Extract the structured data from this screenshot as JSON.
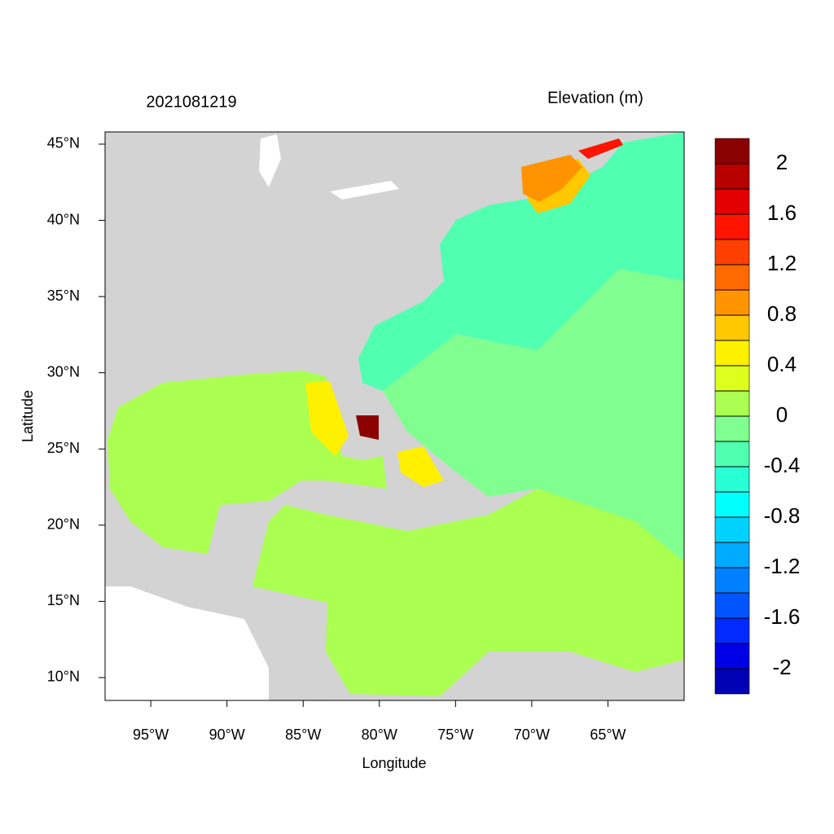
{
  "chart_data": {
    "type": "map",
    "title": "2021081219",
    "colorbar_title": "Elevation (m)",
    "x_label": "Longitude",
    "y_label": "Latitude",
    "xlim": [
      -98,
      -60
    ],
    "ylim": [
      8.5,
      45.8
    ],
    "xticks": [
      {
        "value": -95,
        "label": "95°W"
      },
      {
        "value": -90,
        "label": "90°W"
      },
      {
        "value": -85,
        "label": "85°W"
      },
      {
        "value": -80,
        "label": "80°W"
      },
      {
        "value": -75,
        "label": "75°W"
      },
      {
        "value": -70,
        "label": "70°W"
      },
      {
        "value": -65,
        "label": "65°W"
      }
    ],
    "yticks": [
      {
        "value": 10,
        "label": "10°N"
      },
      {
        "value": 15,
        "label": "15°N"
      },
      {
        "value": 20,
        "label": "20°N"
      },
      {
        "value": 25,
        "label": "25°N"
      },
      {
        "value": 30,
        "label": "30°N"
      },
      {
        "value": 35,
        "label": "35°N"
      },
      {
        "value": 40,
        "label": "40°N"
      },
      {
        "value": 45,
        "label": "45°N"
      }
    ],
    "colorbar": {
      "levels": [
        -2,
        -1.8,
        -1.6,
        -1.4,
        -1.2,
        -1,
        -0.8,
        -0.6,
        -0.4,
        -0.2,
        0,
        0.2,
        0.4,
        0.6,
        0.8,
        1,
        1.2,
        1.4,
        1.6,
        1.8,
        2
      ],
      "colors": [
        "#0000b4",
        "#0000e6",
        "#002aff",
        "#0055ff",
        "#0080ff",
        "#00aaff",
        "#00d2ff",
        "#00ffff",
        "#28ffd5",
        "#50ffb0",
        "#80ff90",
        "#aaff50",
        "#dcff1e",
        "#fff000",
        "#ffc800",
        "#ff9400",
        "#ff6a00",
        "#ff4000",
        "#ff1400",
        "#e30000",
        "#b80000",
        "#8b0000"
      ],
      "ticks": [
        -2,
        -1.6,
        -1.2,
        -0.8,
        -0.4,
        0,
        0.4,
        0.8,
        1.2,
        1.6,
        2
      ]
    }
  }
}
